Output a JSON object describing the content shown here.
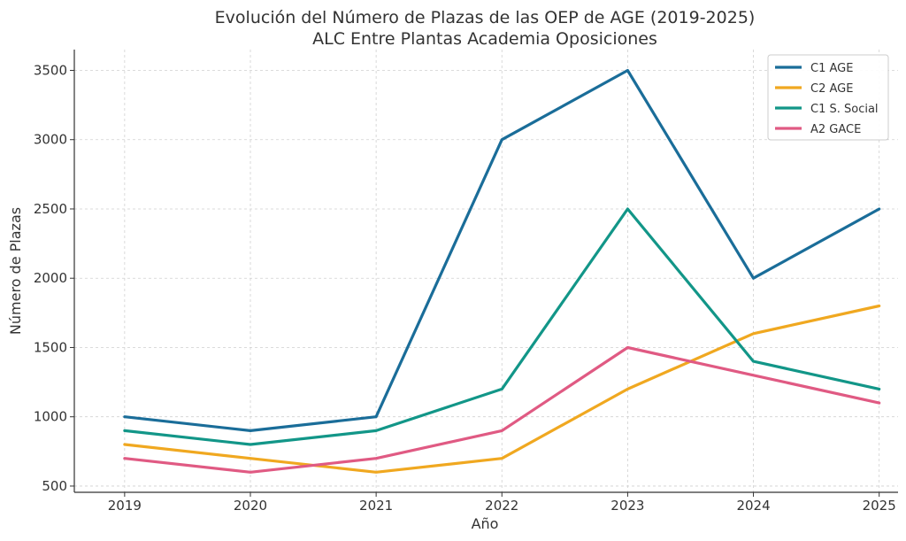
{
  "chart_data": {
    "type": "line",
    "title": "Evolución del Número de Plazas de las OEP de AGE (2019-2025)",
    "subtitle": "ALC Entre Plantas Academia Oposiciones",
    "xlabel": "Año",
    "ylabel": "Número de Plazas",
    "x": [
      2019,
      2020,
      2021,
      2022,
      2023,
      2024,
      2025
    ],
    "x_tick_labels": [
      "2019",
      "2020",
      "2021",
      "2022",
      "2023",
      "2024",
      "2025"
    ],
    "y_ticks": [
      500,
      1000,
      1500,
      2000,
      2500,
      3000,
      3500
    ],
    "y_tick_labels": [
      "500",
      "1000",
      "1500",
      "2000",
      "2500",
      "3000",
      "3500"
    ],
    "xlim": [
      2018.6,
      2025.15
    ],
    "ylim": [
      455,
      3650
    ],
    "grid": true,
    "legend_position": "top-right",
    "series": [
      {
        "name": "C1 AGE",
        "color": "#1a6d99",
        "values": [
          1000,
          900,
          1000,
          3000,
          3500,
          2000,
          2500
        ]
      },
      {
        "name": "C2 AGE",
        "color": "#f0a820",
        "values": [
          800,
          700,
          600,
          700,
          1200,
          1600,
          1800
        ]
      },
      {
        "name": "C1 S. Social",
        "color": "#129688",
        "values": [
          900,
          800,
          900,
          1200,
          2500,
          1400,
          1200
        ]
      },
      {
        "name": "A2 GACE",
        "color": "#e05a83",
        "values": [
          700,
          600,
          700,
          900,
          1500,
          1300,
          1100
        ]
      }
    ]
  }
}
